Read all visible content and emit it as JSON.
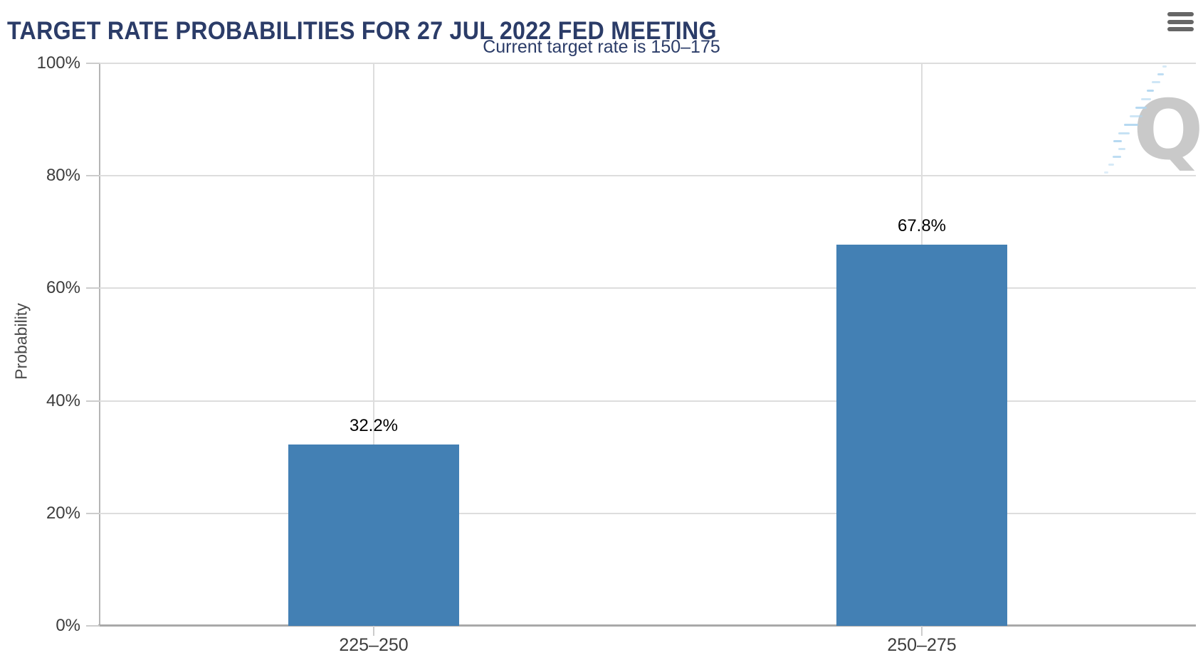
{
  "chart_data": {
    "type": "bar",
    "title": "TARGET RATE PROBABILITIES FOR 27 JUL 2022 FED MEETING",
    "subtitle": "Current target rate is 150–175",
    "current_target_rate": "150–175",
    "categories": [
      "225–250",
      "250–275"
    ],
    "values": [
      32.2,
      67.8
    ],
    "value_labels": [
      "32.2%",
      "67.8%"
    ],
    "xlabel": "",
    "ylabel": "Probability",
    "ylim": [
      0,
      100
    ],
    "yticks": [
      0,
      20,
      40,
      60,
      80,
      100
    ],
    "ytick_labels": [
      "0%",
      "20%",
      "40%",
      "60%",
      "80%",
      "100%"
    ],
    "grid": true,
    "legend": false,
    "bar_color": "#4380B4"
  },
  "header": {
    "menu_icon": "hamburger-icon"
  },
  "watermark": {
    "letter": "Q",
    "q_color": "#C9C9C9",
    "dash_color": "#AED5F0"
  },
  "colors": {
    "title_text": "#2B3C68",
    "axis_text": "#3D3D3D",
    "data_label": "#000000",
    "gridline": "#DDDDDD",
    "axis_line": "#A9A9A9",
    "menu_icon": "#666666",
    "background": "#FFFFFF"
  }
}
